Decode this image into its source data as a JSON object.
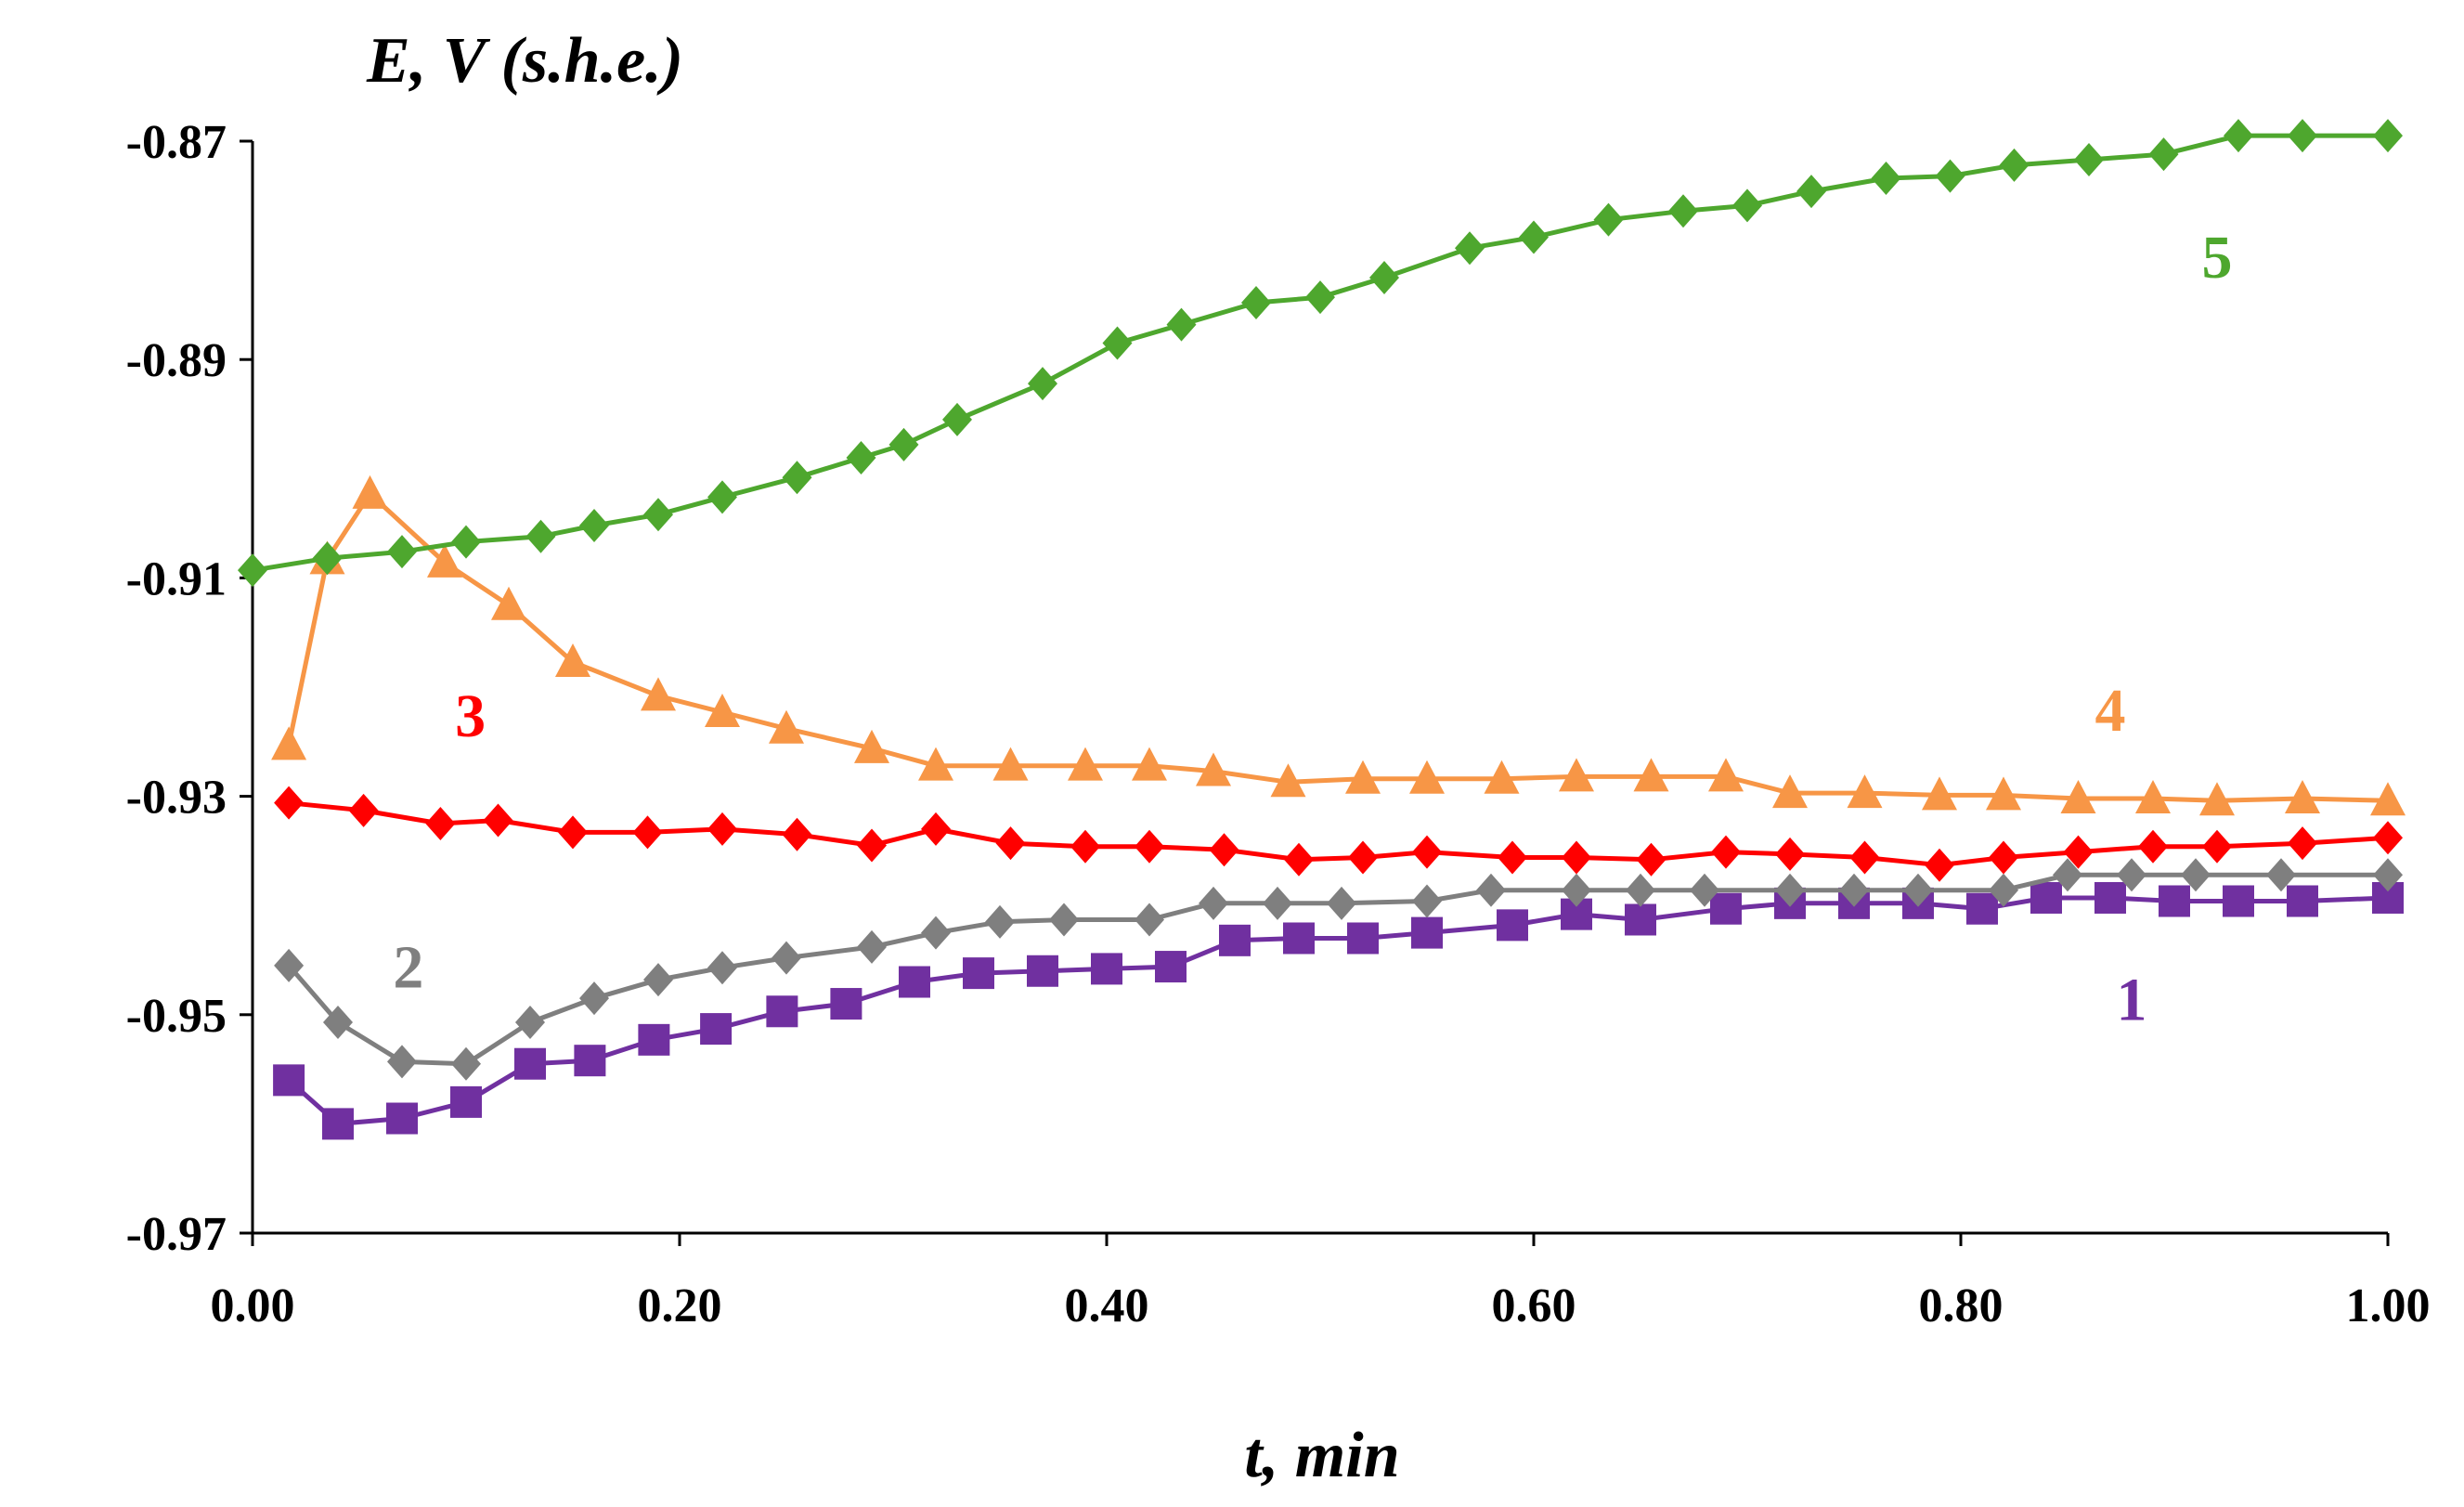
{
  "chart_data": {
    "type": "line",
    "title": "",
    "xlabel": "t, min",
    "ylabel": "E, V (s.h.e.)",
    "xlim": [
      0.0,
      1.0
    ],
    "ylim": [
      -0.97,
      -0.87
    ],
    "xticks": [
      "0.00",
      "0.20",
      "0.40",
      "0.60",
      "0.80",
      "1.00"
    ],
    "yticks": [
      "-0.87",
      "-0.89",
      "-0.91",
      "-0.93",
      "-0.95",
      "-0.97"
    ],
    "grid": false,
    "series": [
      {
        "name": "1",
        "color": "#7030A0",
        "marker": "square",
        "x": [
          0.017,
          0.04,
          0.07,
          0.1,
          0.13,
          0.158,
          0.188,
          0.217,
          0.248,
          0.278,
          0.31,
          0.34,
          0.37,
          0.4,
          0.43,
          0.46,
          0.49,
          0.52,
          0.55,
          0.59,
          0.62,
          0.65,
          0.69,
          0.72,
          0.75,
          0.78,
          0.81,
          0.84,
          0.87,
          0.9,
          0.93,
          0.96,
          1.0
        ],
        "y": [
          -0.956,
          -0.96,
          -0.9595,
          -0.958,
          -0.9545,
          -0.9542,
          -0.9523,
          -0.9513,
          -0.9497,
          -0.949,
          -0.947,
          -0.9462,
          -0.946,
          -0.9458,
          -0.9456,
          -0.9432,
          -0.943,
          -0.943,
          -0.9425,
          -0.9418,
          -0.9408,
          -0.9413,
          -0.9403,
          -0.9398,
          -0.9398,
          -0.9398,
          -0.9403,
          -0.9393,
          -0.9393,
          -0.9396,
          -0.9396,
          -0.9396,
          -0.9393
        ],
        "label_pos": [
          0.88,
          -0.9505
        ]
      },
      {
        "name": "2",
        "color": "#7F7F7F",
        "marker": "diamond",
        "x": [
          0.017,
          0.04,
          0.07,
          0.1,
          0.13,
          0.16,
          0.19,
          0.22,
          0.25,
          0.29,
          0.32,
          0.35,
          0.38,
          0.42,
          0.45,
          0.48,
          0.51,
          0.55,
          0.58,
          0.62,
          0.65,
          0.68,
          0.72,
          0.75,
          0.78,
          0.82,
          0.85,
          0.88,
          0.91,
          0.95,
          1.0
        ],
        "y": [
          -0.9455,
          -0.9507,
          -0.9543,
          -0.9545,
          -0.9507,
          -0.9485,
          -0.9468,
          -0.9457,
          -0.9448,
          -0.9438,
          -0.9425,
          -0.9415,
          -0.9413,
          -0.9413,
          -0.9398,
          -0.9398,
          -0.9398,
          -0.9396,
          -0.9386,
          -0.9386,
          -0.9386,
          -0.9386,
          -0.9386,
          -0.9386,
          -0.9386,
          -0.9386,
          -0.9372,
          -0.9372,
          -0.9372,
          -0.9372,
          -0.9372
        ],
        "label_pos": [
          0.073,
          -0.9475
        ]
      },
      {
        "name": "3",
        "color": "#FF0000",
        "marker": "diamond",
        "x": [
          0.017,
          0.052,
          0.088,
          0.115,
          0.15,
          0.185,
          0.22,
          0.255,
          0.29,
          0.32,
          0.355,
          0.39,
          0.42,
          0.455,
          0.49,
          0.52,
          0.55,
          0.59,
          0.62,
          0.655,
          0.69,
          0.72,
          0.755,
          0.79,
          0.82,
          0.855,
          0.89,
          0.92,
          0.96,
          1.0
        ],
        "y": [
          -0.9306,
          -0.9313,
          -0.9325,
          -0.9322,
          -0.9333,
          -0.9333,
          -0.933,
          -0.9335,
          -0.9345,
          -0.933,
          -0.9343,
          -0.9346,
          -0.9346,
          -0.9349,
          -0.9358,
          -0.9356,
          -0.9351,
          -0.9356,
          -0.9356,
          -0.9358,
          -0.9351,
          -0.9353,
          -0.9356,
          -0.9363,
          -0.9356,
          -0.9351,
          -0.9346,
          -0.9346,
          -0.9343,
          -0.9338
        ],
        "label_pos": [
          0.102,
          -0.9245
        ]
      },
      {
        "name": "4",
        "color": "#F79646",
        "marker": "triangle",
        "x": [
          0.017,
          0.035,
          0.055,
          0.09,
          0.12,
          0.15,
          0.19,
          0.22,
          0.25,
          0.29,
          0.32,
          0.355,
          0.39,
          0.42,
          0.45,
          0.485,
          0.52,
          0.55,
          0.585,
          0.62,
          0.655,
          0.69,
          0.72,
          0.755,
          0.79,
          0.82,
          0.855,
          0.89,
          0.92,
          0.96,
          1.0
        ],
        "y": [
          -0.9253,
          -0.9083,
          -0.9023,
          -0.9086,
          -0.9125,
          -0.9177,
          -0.9208,
          -0.9223,
          -0.9238,
          -0.9256,
          -0.9272,
          -0.9272,
          -0.9272,
          -0.9272,
          -0.9277,
          -0.9287,
          -0.9284,
          -0.9284,
          -0.9284,
          -0.9282,
          -0.9282,
          -0.9282,
          -0.9297,
          -0.9297,
          -0.9299,
          -0.9299,
          -0.9302,
          -0.9302,
          -0.9304,
          -0.9302,
          -0.9304
        ],
        "label_pos": [
          0.87,
          -0.924
        ]
      },
      {
        "name": "5",
        "color": "#4EA72E",
        "marker": "diamond",
        "x": [
          0.0,
          0.035,
          0.07,
          0.1,
          0.135,
          0.16,
          0.19,
          0.22,
          0.255,
          0.285,
          0.305,
          0.33,
          0.37,
          0.405,
          0.435,
          0.47,
          0.5,
          0.53,
          0.57,
          0.6,
          0.635,
          0.67,
          0.7,
          0.73,
          0.765,
          0.795,
          0.825,
          0.86,
          0.895,
          0.93,
          0.96,
          1.0
        ],
        "y": [
          -0.9093,
          -0.9082,
          -0.9076,
          -0.9067,
          -0.9062,
          -0.9052,
          -0.9042,
          -0.9026,
          -0.9008,
          -0.899,
          -0.8978,
          -0.8955,
          -0.8922,
          -0.8885,
          -0.8868,
          -0.8848,
          -0.8843,
          -0.8825,
          -0.8798,
          -0.8788,
          -0.8772,
          -0.8764,
          -0.8759,
          -0.8746,
          -0.8734,
          -0.8732,
          -0.8722,
          -0.8717,
          -0.8712,
          -0.8695,
          -0.8695,
          -0.8695
        ],
        "label_pos": [
          0.92,
          -0.8825
        ]
      }
    ]
  }
}
